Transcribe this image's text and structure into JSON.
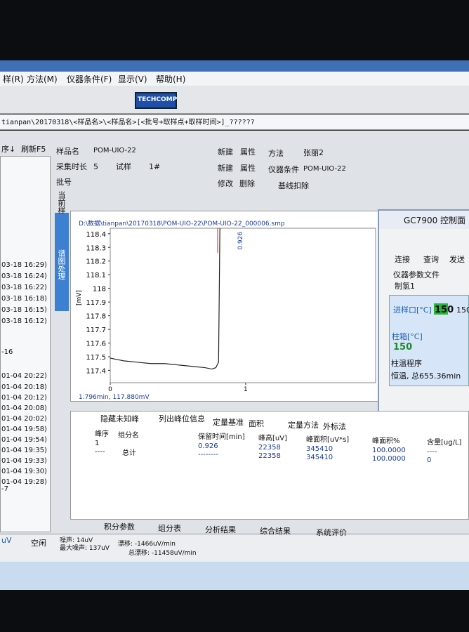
{
  "menu": [
    "样(R)",
    "方法(M)",
    "仪器条件(F)",
    "显示(V)",
    "帮助(H)"
  ],
  "toolbar": {
    "logo": "TECHCOMP"
  },
  "path_bar": "tianpan\\20170318\\<样品名>\\<样品名>[<批号+取样点+取样时间>]_??????",
  "sample_list": {
    "sort": "序↓",
    "refresh": "刷新F5",
    "items": [
      "03-18 16:29)",
      "03-18 16:24)",
      "03-18 16:22)",
      "03-18 16:18)",
      "03-18 16:15)",
      "03-18 16:12)",
      "-16",
      "01-04 20:22)",
      "01-04 20:18)",
      "01-04 20:12)",
      "01-04 20:08)",
      "01-04 20:02)",
      "01-04 19:58)",
      "01-04 19:54)",
      "01-04 19:35)",
      "01-04 19:33)",
      "01-04 19:30)",
      "01-04 19:28)",
      "-7"
    ]
  },
  "sample_form": {
    "name_label": "样品名",
    "name": "POM-UIO-22",
    "new1": "新建",
    "prop1": "属性",
    "duration_label": "采集时长",
    "duration": "5",
    "kind": "试样",
    "vial": "1#",
    "new2": "新建",
    "prop2": "属性",
    "batch_label": "批号",
    "edit": "修改",
    "delete": "删除",
    "method_label": "方法",
    "method": "张丽2",
    "instrument_label": "仪器条件",
    "instrument": "POM-UIO-22",
    "baseline": "基线扣除"
  },
  "side_tabs": [
    "当前样",
    "谱图处理"
  ],
  "chromatogram": {
    "type": "line",
    "file": "D:\\数据\\tianpan\\20170318\\POM-UIO-22\\POM-UIO-22_000006.smp",
    "ylabel": "[mV]",
    "x": [
      0,
      0.05,
      0.1,
      0.2,
      0.3,
      0.4,
      0.5,
      0.6,
      0.7,
      0.75,
      0.78,
      0.8,
      0.81
    ],
    "values": [
      117.49,
      117.48,
      117.47,
      117.46,
      117.45,
      117.45,
      117.44,
      117.43,
      117.42,
      117.41,
      117.42,
      117.46,
      118.44
    ],
    "color": "#222222",
    "xlim": [
      0,
      1.96
    ],
    "xticks": [
      0,
      1
    ],
    "ylim": [
      117.31,
      118.44
    ],
    "yticks": [
      117.4,
      117.5,
      117.6,
      117.7,
      117.8,
      117.9,
      118,
      118.1,
      118.2,
      118.3,
      118.4
    ],
    "peak_label": "0.926",
    "cursor": "1.796min, 117.880mV"
  },
  "gc_panel": {
    "title": "GC7900 控制面",
    "connect": "连接",
    "query": "查询",
    "send": "发送",
    "param_file_label": "仪器参数文件",
    "param_file": "制氢1",
    "inlet_label": "进样口[°C]",
    "inlet_set": "150",
    "inlet_actual": "150",
    "oven_label": "柱箱[°C]",
    "oven": "150",
    "oven_program": "柱温程序",
    "oven_status": "恒温, 总655.36min"
  },
  "results": {
    "hide_unknown": "隐藏未知峰",
    "list_peaks": "列出峰位信息",
    "quant_basis_label": "定量基准",
    "quant_basis": "面积",
    "quant_method_label": "定量方法",
    "quant_method": "外标法",
    "headers": [
      "峰序",
      "组分名",
      "保留时间[min]",
      "峰高[uV]",
      "峰面积[uV*s]",
      "峰面积%",
      "含量[ug/L]"
    ],
    "rows": [
      [
        "1",
        "",
        "0.926",
        "22358",
        "345410",
        "100.0000",
        "----"
      ],
      [
        "----",
        "总计",
        "--------",
        "22358",
        "345410",
        "100.0000",
        "0"
      ]
    ]
  },
  "tabs": [
    "积分参数",
    "组分表",
    "分析结果",
    "综合结果",
    "系统评价"
  ],
  "status": {
    "unit": "uV",
    "state": "空闲",
    "noise": "噪声: 14uV",
    "drift": "漂移: -1466uV/min",
    "max_noise": "最大噪声: 137uV",
    "total_drift": "总漂移: -11458uV/min"
  }
}
